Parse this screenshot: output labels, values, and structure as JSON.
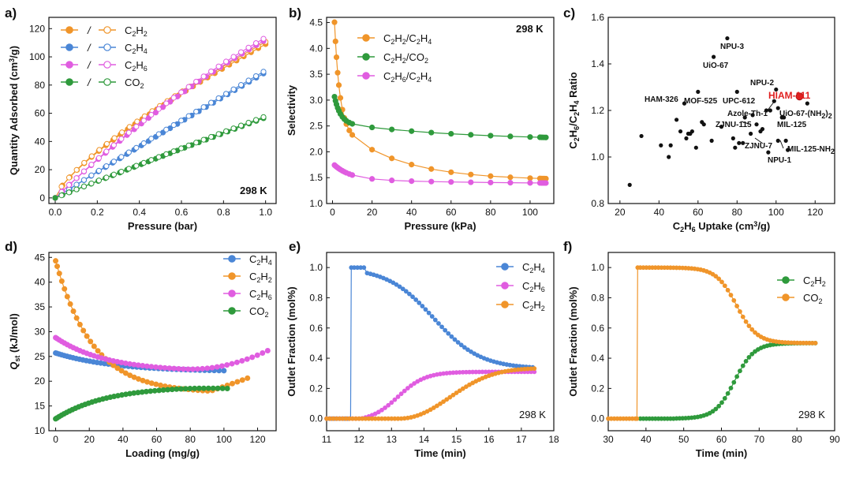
{
  "chart_data": [
    {
      "panel": "a)",
      "type": "scatter",
      "xlabel": "Pressure (bar)",
      "ylabel": "Quantity Adsorbed (cm³/g)",
      "xlim": [
        -0.03,
        1.05
      ],
      "ylim": [
        -4,
        128
      ],
      "xticks": [
        0.0,
        0.2,
        0.4,
        0.6,
        0.8,
        1.0
      ],
      "yticks": [
        0,
        20,
        40,
        60,
        80,
        100,
        120
      ],
      "annotation": "298 K",
      "legend_sep": "/",
      "series": [
        {
          "name": "C2H2",
          "color": "#f0952a",
          "fn": "iso_c2h2"
        },
        {
          "name": "C2H4",
          "color": "#4a86d6",
          "fn": "iso_c2h4"
        },
        {
          "name": "C2H6",
          "color": "#e05de0",
          "fn": "iso_c2h6"
        },
        {
          "name": "CO2",
          "color": "#2f9a3c",
          "fn": "iso_co2"
        }
      ]
    },
    {
      "panel": "b)",
      "type": "scatter",
      "xlabel": "Pressure (kPa)",
      "ylabel": "Selectivity",
      "xlim": [
        -3,
        112
      ],
      "ylim": [
        1.0,
        4.6
      ],
      "xticks": [
        0,
        20,
        40,
        60,
        80,
        100
      ],
      "yticks": [
        1.0,
        1.5,
        2.0,
        2.5,
        3.0,
        3.5,
        4.0,
        4.5
      ],
      "annotation": "298 K",
      "series": [
        {
          "name": "C2H2/C2H4",
          "color": "#f0952a",
          "fn": "sel_c2h2_c2h4"
        },
        {
          "name": "C2H2/CO2",
          "color": "#2f9a3c",
          "fn": "sel_c2h2_co2"
        },
        {
          "name": "C2H6/C2H4",
          "color": "#e05de0",
          "fn": "sel_c2h6_c2h4"
        }
      ]
    },
    {
      "panel": "c)",
      "type": "scatter",
      "xlabel": "C2H6 Uptake (cm³/g)",
      "ylabel": "C2H6/C2H4 Ratio",
      "xlim": [
        14,
        130
      ],
      "ylim": [
        0.8,
        1.6
      ],
      "xticks": [
        20,
        40,
        60,
        80,
        100,
        120
      ],
      "yticks": [
        0.8,
        1.0,
        1.2,
        1.4,
        1.6
      ],
      "points": [
        [
          25,
          0.88
        ],
        [
          31,
          1.09
        ],
        [
          41,
          1.05
        ],
        [
          45,
          1.0
        ],
        [
          46,
          1.05
        ],
        [
          49,
          1.16
        ],
        [
          51,
          1.11
        ],
        [
          54,
          1.08
        ],
        [
          55,
          1.1
        ],
        [
          56,
          1.1
        ],
        [
          57,
          1.11
        ],
        [
          59,
          1.04
        ],
        [
          62,
          1.15
        ],
        [
          63,
          1.14
        ],
        [
          67,
          1.07
        ],
        [
          72,
          1.13
        ],
        [
          78,
          1.08
        ],
        [
          79,
          1.04
        ],
        [
          81,
          1.06
        ],
        [
          84,
          1.17
        ],
        [
          87,
          1.1
        ],
        [
          88,
          1.18
        ],
        [
          90,
          1.14
        ],
        [
          92,
          1.11
        ],
        [
          93,
          1.12
        ],
        [
          95,
          1.2
        ],
        [
          96,
          1.02
        ],
        [
          97,
          1.2
        ],
        [
          99,
          1.24
        ],
        [
          100,
          1.29
        ],
        [
          101,
          1.21
        ],
        [
          103,
          1.17
        ],
        [
          104,
          1.17
        ],
        [
          105,
          1.07
        ],
        [
          106,
          1.03
        ],
        [
          116,
          1.23
        ],
        [
          53,
          1.23
        ],
        [
          60,
          1.28
        ],
        [
          80,
          1.28
        ],
        [
          75,
          1.51
        ],
        [
          68,
          1.43
        ],
        [
          101,
          1.07
        ],
        [
          83,
          1.06
        ]
      ],
      "highlight": {
        "x": 112,
        "y": 1.26,
        "label": "HIAM-111",
        "color": "#e02020"
      },
      "labels": [
        "NPU-3",
        "UiO-67",
        "MOF-525",
        "NPU-2",
        "HAM-326",
        "UPC-612",
        "Azole-Th-1",
        "UiO-67-(NH2)2",
        "ZJNU-115",
        "MIL-125",
        "ZJNU-7",
        "MIL-125-NH2",
        "NPU-1"
      ]
    },
    {
      "panel": "d)",
      "type": "scatter",
      "xlabel": "Loading (mg/g)",
      "ylabel": "Qst (kJ/mol)",
      "xlim": [
        -4,
        131
      ],
      "ylim": [
        10,
        46
      ],
      "xticks": [
        0,
        20,
        40,
        60,
        80,
        100,
        120
      ],
      "yticks": [
        10,
        15,
        20,
        25,
        30,
        35,
        40,
        45
      ],
      "series": [
        {
          "name": "C2H4",
          "color": "#4a86d6",
          "fn": "qst_c2h4"
        },
        {
          "name": "C2H2",
          "color": "#f0952a",
          "fn": "qst_c2h2"
        },
        {
          "name": "C2H6",
          "color": "#e05de0",
          "fn": "qst_c2h6"
        },
        {
          "name": "CO2",
          "color": "#2f9a3c",
          "fn": "qst_co2"
        }
      ]
    },
    {
      "panel": "e)",
      "type": "scatter",
      "xlabel": "Time (min)",
      "ylabel": "Outlet Fraction (mol%)",
      "xlim": [
        11,
        18
      ],
      "ylim": [
        -0.08,
        1.1
      ],
      "xticks": [
        11,
        12,
        13,
        14,
        15,
        16,
        17,
        18
      ],
      "yticks": [
        0.0,
        0.2,
        0.4,
        0.6,
        0.8,
        1.0
      ],
      "annotation": "298 K",
      "series": [
        {
          "name": "C2H4",
          "color": "#4a86d6",
          "fn": "bt_e_c2h4"
        },
        {
          "name": "C2H6",
          "color": "#e05de0",
          "fn": "bt_e_c2h6"
        },
        {
          "name": "C2H2",
          "color": "#f0952a",
          "fn": "bt_e_c2h2"
        }
      ]
    },
    {
      "panel": "f)",
      "type": "scatter",
      "xlabel": "Time (min)",
      "ylabel": "Outlet Fraction (mol%)",
      "xlim": [
        30,
        90
      ],
      "ylim": [
        -0.08,
        1.1
      ],
      "xticks": [
        30,
        40,
        50,
        60,
        70,
        80,
        90
      ],
      "yticks": [
        0.0,
        0.2,
        0.4,
        0.6,
        0.8,
        1.0
      ],
      "annotation": "298 K",
      "series": [
        {
          "name": "C2H2",
          "color": "#2f9a3c",
          "fn": "bt_f_c2h2"
        },
        {
          "name": "CO2",
          "color": "#f0952a",
          "fn": "bt_f_co2"
        }
      ]
    }
  ]
}
